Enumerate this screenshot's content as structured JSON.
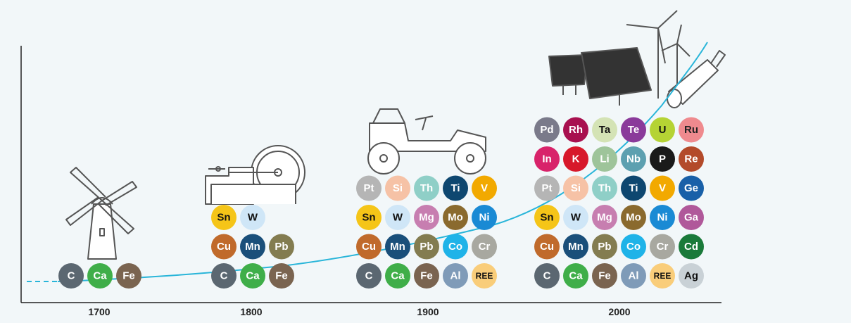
{
  "eras": [
    {
      "year": "1700",
      "rows": [
        [
          "C",
          "Ca",
          "Fe"
        ]
      ]
    },
    {
      "year": "1800",
      "rows": [
        [
          "C",
          "Ca",
          "Fe"
        ],
        [
          "Cu",
          "Mn",
          "Pb"
        ],
        [
          "Sn",
          "W"
        ]
      ]
    },
    {
      "year": "1900",
      "rows": [
        [
          "C",
          "Ca",
          "Fe",
          "Al",
          "REE"
        ],
        [
          "Cu",
          "Mn",
          "Pb",
          "Co",
          "Cr"
        ],
        [
          "Sn",
          "W",
          "Mg",
          "Mo",
          "Ni"
        ],
        [
          "Pt",
          "Si",
          "Th",
          "Ti",
          "V"
        ]
      ]
    },
    {
      "year": "2000",
      "rows": [
        [
          "C",
          "Ca",
          "Fe",
          "Al",
          "REE",
          "Ag"
        ],
        [
          "Cu",
          "Mn",
          "Pb",
          "Co",
          "Cr",
          "Cd"
        ],
        [
          "Sn",
          "W",
          "Mg",
          "Mo",
          "Ni",
          "Ga"
        ],
        [
          "Pt",
          "Si",
          "Th",
          "Ti",
          "V",
          "Ge"
        ],
        [
          "In",
          "K",
          "Li",
          "Nb",
          "P",
          "Re"
        ],
        [
          "Pd",
          "Rh",
          "Ta",
          "Te",
          "U",
          "Ru"
        ]
      ]
    }
  ],
  "element_colors": {
    "C": [
      "#5b6771",
      "#ffffff"
    ],
    "Ca": [
      "#3fae49",
      "#ffffff"
    ],
    "Fe": [
      "#7a6450",
      "#ffffff"
    ],
    "Cu": [
      "#c06a2b",
      "#ffffff"
    ],
    "Mn": [
      "#1a4f7a",
      "#ffffff"
    ],
    "Pb": [
      "#837c50",
      "#ffffff"
    ],
    "Sn": [
      "#f5c518",
      "#111111"
    ],
    "W": [
      "#cfe6f7",
      "#111111"
    ],
    "Pt": [
      "#b5b5b5",
      "#ffffff"
    ],
    "Si": [
      "#f6c2a6",
      "#ffffff"
    ],
    "Th": [
      "#8fcfc7",
      "#ffffff"
    ],
    "Ti": [
      "#0e4770",
      "#ffffff"
    ],
    "V": [
      "#f2a900",
      "#ffffff"
    ],
    "Mg": [
      "#c77eb0",
      "#ffffff"
    ],
    "Mo": [
      "#8a6a2e",
      "#ffffff"
    ],
    "Ni": [
      "#1a8ad4",
      "#ffffff"
    ],
    "Co": [
      "#1fb3e8",
      "#ffffff"
    ],
    "Cr": [
      "#a8a8a0",
      "#ffffff"
    ],
    "Al": [
      "#7f9bb8",
      "#ffffff"
    ],
    "REE": [
      "#f9cd7a",
      "#111111"
    ],
    "Ag": [
      "#c9d1d6",
      "#111111"
    ],
    "Cd": [
      "#1a7a3a",
      "#ffffff"
    ],
    "Ga": [
      "#b0589a",
      "#ffffff"
    ],
    "Ge": [
      "#1960a8",
      "#ffffff"
    ],
    "In": [
      "#d8236a",
      "#ffffff"
    ],
    "K": [
      "#d7182a",
      "#ffffff"
    ],
    "Li": [
      "#9ec49a",
      "#ffffff"
    ],
    "Nb": [
      "#5da0b0",
      "#ffffff"
    ],
    "P": [
      "#1a1a1a",
      "#ffffff"
    ],
    "Re": [
      "#b34a2a",
      "#ffffff"
    ],
    "Pd": [
      "#7a7a8a",
      "#ffffff"
    ],
    "Rh": [
      "#a8104f",
      "#ffffff"
    ],
    "Ta": [
      "#d4e3b5",
      "#111111"
    ],
    "Te": [
      "#8a3a9a",
      "#ffffff"
    ],
    "U": [
      "#b5d334",
      "#111111"
    ],
    "Ru": [
      "#ef8a8e",
      "#222222"
    ]
  }
}
